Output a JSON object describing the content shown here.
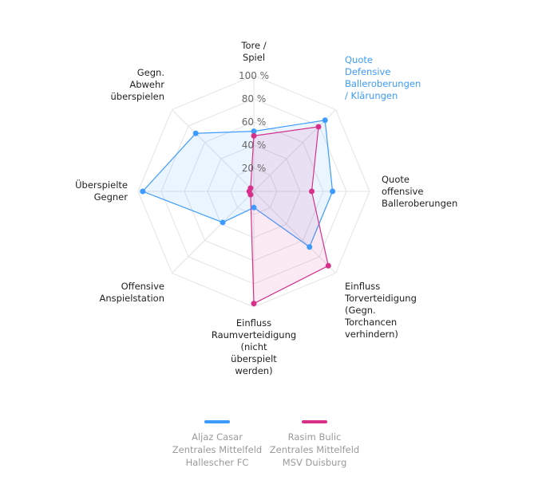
{
  "chart_data": {
    "type": "radar",
    "axes": [
      {
        "label": "Tore /\nSpiel",
        "highlight": false
      },
      {
        "label": "Quote\nDefensive\nBalleroberungen\n/ Klärungen",
        "highlight": true
      },
      {
        "label": "Quote\noffensive\nBalleroberungen",
        "highlight": false
      },
      {
        "label": "Einfluss\nTorverteidigung\n(Gegn.\nTorchancen\nverhindern)",
        "highlight": false
      },
      {
        "label": "Einfluss\nRaumverteidigung\n(nicht\nüberspielt\nwerden)",
        "highlight": false
      },
      {
        "label": "Offensive\nAnspielstation",
        "highlight": false
      },
      {
        "label": "Überspielte\nGegner",
        "highlight": false
      },
      {
        "label": "Gegn.\nAbwehr\nüberspielen",
        "highlight": false
      }
    ],
    "ticks": [
      "20 %",
      "40 %",
      "60 %",
      "80 %",
      "100 %"
    ],
    "range": [
      0,
      100
    ],
    "series": [
      {
        "name": "Aljaz Casar",
        "position": "Zentrales Mittelfeld",
        "team": "Hallescher FC",
        "color": "#3d9bff",
        "values": [
          52,
          87,
          68,
          68,
          14,
          38,
          96,
          71
        ]
      },
      {
        "name": "Rasim Bulic",
        "position": "Zentrales Mittelfeld",
        "team": "MSV Duisburg",
        "color": "#d6308a",
        "values": [
          48,
          79,
          50,
          91,
          97,
          4,
          4,
          4
        ]
      }
    ],
    "legend": "bottom"
  }
}
